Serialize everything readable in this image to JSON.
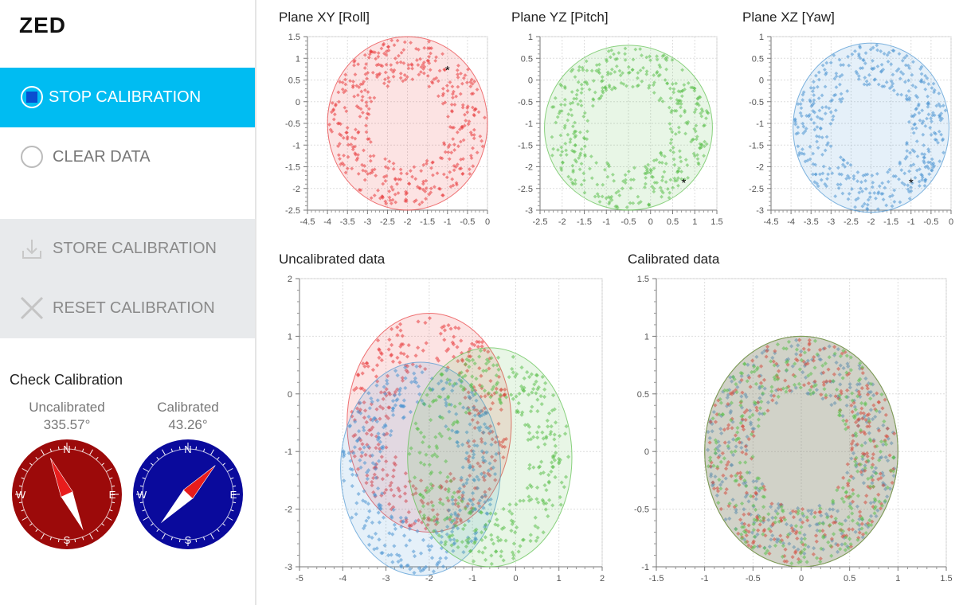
{
  "app": {
    "logo": "ZED"
  },
  "sidebar": {
    "stop_label": "STOP CALIBRATION",
    "clear_label": "CLEAR DATA",
    "store_label": "STORE CALIBRATION",
    "reset_label": "RESET CALIBRATION"
  },
  "check": {
    "title": "Check Calibration",
    "uncal_label": "Uncalibrated",
    "uncal_value": "335.57°",
    "uncal_heading": 335.57,
    "cal_label": "Calibrated",
    "cal_value": "43.26°",
    "cal_heading": 43.26,
    "dirs": {
      "n": "N",
      "s": "S",
      "e": "E",
      "w": "W"
    }
  },
  "colors": {
    "accent": "#00bcf2",
    "x_series": "#e8383b",
    "y_series": "#5bbf4c",
    "z_series": "#4a94d2",
    "compass_uncal": "#9c0a0a",
    "compass_cal": "#0a0a9c"
  },
  "chart_data": [
    {
      "type": "scatter",
      "title": "Plane XY [Roll]",
      "xlim": [
        -4.5,
        0
      ],
      "ylim": [
        -2.5,
        1.5
      ],
      "xticks": [
        -4.5,
        -4,
        -3.5,
        -3,
        -2.5,
        -2,
        -1.5,
        -1,
        -0.5,
        0
      ],
      "yticks": [
        -2.5,
        -2,
        -1.5,
        -1,
        -0.5,
        0,
        0.5,
        1,
        1.5
      ],
      "series": [
        {
          "color": "#e8383b",
          "center": [
            -2,
            -0.5
          ],
          "radius": 2
        }
      ],
      "marker": [
        -1,
        0.75
      ]
    },
    {
      "type": "scatter",
      "title": "Plane YZ [Pitch]",
      "xlim": [
        -2.5,
        1.5
      ],
      "ylim": [
        -3,
        1
      ],
      "xticks": [
        -2.5,
        -2,
        -1.5,
        -1,
        -0.5,
        0,
        0.5,
        1,
        1.5
      ],
      "yticks": [
        -3,
        -2.5,
        -2,
        -1.5,
        -1,
        -0.5,
        0,
        0.5,
        1
      ],
      "series": [
        {
          "color": "#5bbf4c",
          "center": [
            -0.5,
            -1.1
          ],
          "radius": 1.9
        }
      ],
      "marker": [
        0.75,
        -2.35
      ]
    },
    {
      "type": "scatter",
      "title": "Plane XZ [Yaw]",
      "xlim": [
        -4.5,
        0
      ],
      "ylim": [
        -3,
        1
      ],
      "xticks": [
        -4.5,
        -4,
        -3.5,
        -3,
        -2.5,
        -2,
        -1.5,
        -1,
        -0.5,
        0
      ],
      "yticks": [
        -3,
        -2.5,
        -2,
        -1.5,
        -1,
        -0.5,
        0,
        0.5,
        1
      ],
      "series": [
        {
          "color": "#4a94d2",
          "center": [
            -2,
            -1.1
          ],
          "radius": 1.95
        }
      ],
      "marker": [
        -1,
        -2.35
      ]
    },
    {
      "type": "scatter",
      "title": "Uncalibrated data",
      "xlim": [
        -5,
        2
      ],
      "ylim": [
        -3,
        2
      ],
      "xticks": [
        -5,
        -4,
        -3,
        -2,
        -1,
        0,
        1,
        2
      ],
      "yticks": [
        -3,
        -2,
        -1,
        0,
        1,
        2
      ],
      "series": [
        {
          "color": "#e8383b",
          "center": [
            -2,
            -0.5
          ],
          "radius": 1.9
        },
        {
          "color": "#4a94d2",
          "center": [
            -2.2,
            -1.3
          ],
          "radius": 1.85
        },
        {
          "color": "#5bbf4c",
          "center": [
            -0.6,
            -1.1
          ],
          "radius": 1.9
        }
      ]
    },
    {
      "type": "scatter",
      "title": "Calibrated data",
      "xlim": [
        -1.5,
        1.5
      ],
      "ylim": [
        -1,
        1.5
      ],
      "xticks": [
        -1.5,
        -1,
        -0.5,
        0,
        0.5,
        1,
        1.5
      ],
      "yticks": [
        -1,
        -0.5,
        0,
        0.5,
        1,
        1.5
      ],
      "series": [
        {
          "color": "#4a94d2",
          "center": [
            0,
            0
          ],
          "radius": 1
        },
        {
          "color": "#e8383b",
          "center": [
            0,
            0
          ],
          "radius": 1
        },
        {
          "color": "#5bbf4c",
          "center": [
            0,
            0
          ],
          "radius": 1
        }
      ]
    }
  ]
}
